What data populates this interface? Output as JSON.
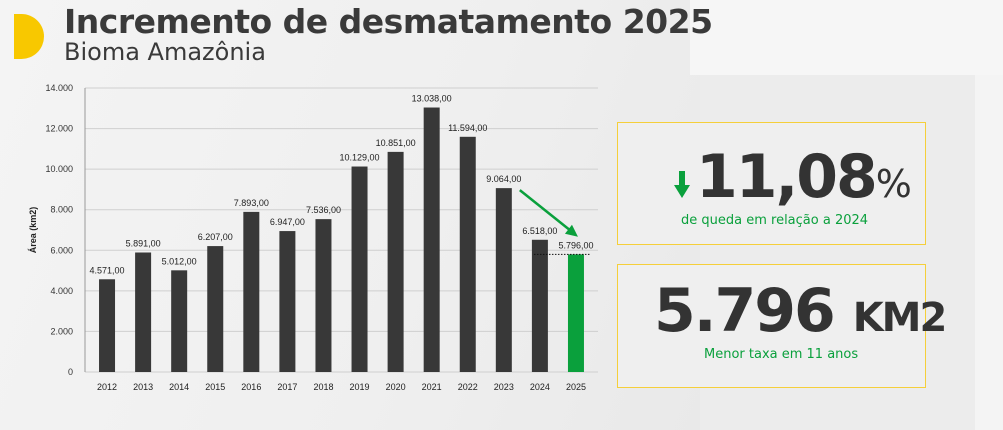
{
  "header": {
    "title": "Incremento de desmatamento 2025",
    "subtitle": "Bioma Amazônia"
  },
  "colors": {
    "bar": "#383838",
    "highlight": "#0aa03c",
    "accent": "#f8c800"
  },
  "chart_data": {
    "type": "bar",
    "title": "",
    "xlabel": "",
    "ylabel": "Área (km2)",
    "ylim": [
      0,
      14000
    ],
    "yticks": [
      0,
      2000,
      4000,
      6000,
      8000,
      10000,
      12000,
      14000
    ],
    "ytick_labels": [
      "0",
      "2.000",
      "4.000",
      "6.000",
      "8.000",
      "10.000",
      "12.000",
      "14.000"
    ],
    "grid": true,
    "categories": [
      "2012",
      "2013",
      "2014",
      "2015",
      "2016",
      "2017",
      "2018",
      "2019",
      "2020",
      "2021",
      "2022",
      "2023",
      "2024",
      "2025"
    ],
    "values": [
      4571,
      5891,
      5012,
      6207,
      7893,
      6947,
      7536,
      10129,
      10851,
      13038,
      11594,
      9064,
      6518,
      5796
    ],
    "data_labels": [
      "4.571,00",
      "5.891,00",
      "5.012,00",
      "6.207,00",
      "7.893,00",
      "6.947,00",
      "7.536,00",
      "10.129,00",
      "10.851,00",
      "13.038,00",
      "11.594,00",
      "9.064,00",
      "6.518,00",
      "5.796,00"
    ],
    "highlight_index": 13
  },
  "cards": {
    "drop": {
      "arrow_icon": "arrow-down-icon",
      "value": "11,08",
      "unit": "%",
      "caption": "de queda em relação a 2024"
    },
    "area": {
      "value": "5.796",
      "unit": "KM2",
      "caption": "Menor taxa em 11 anos"
    }
  }
}
